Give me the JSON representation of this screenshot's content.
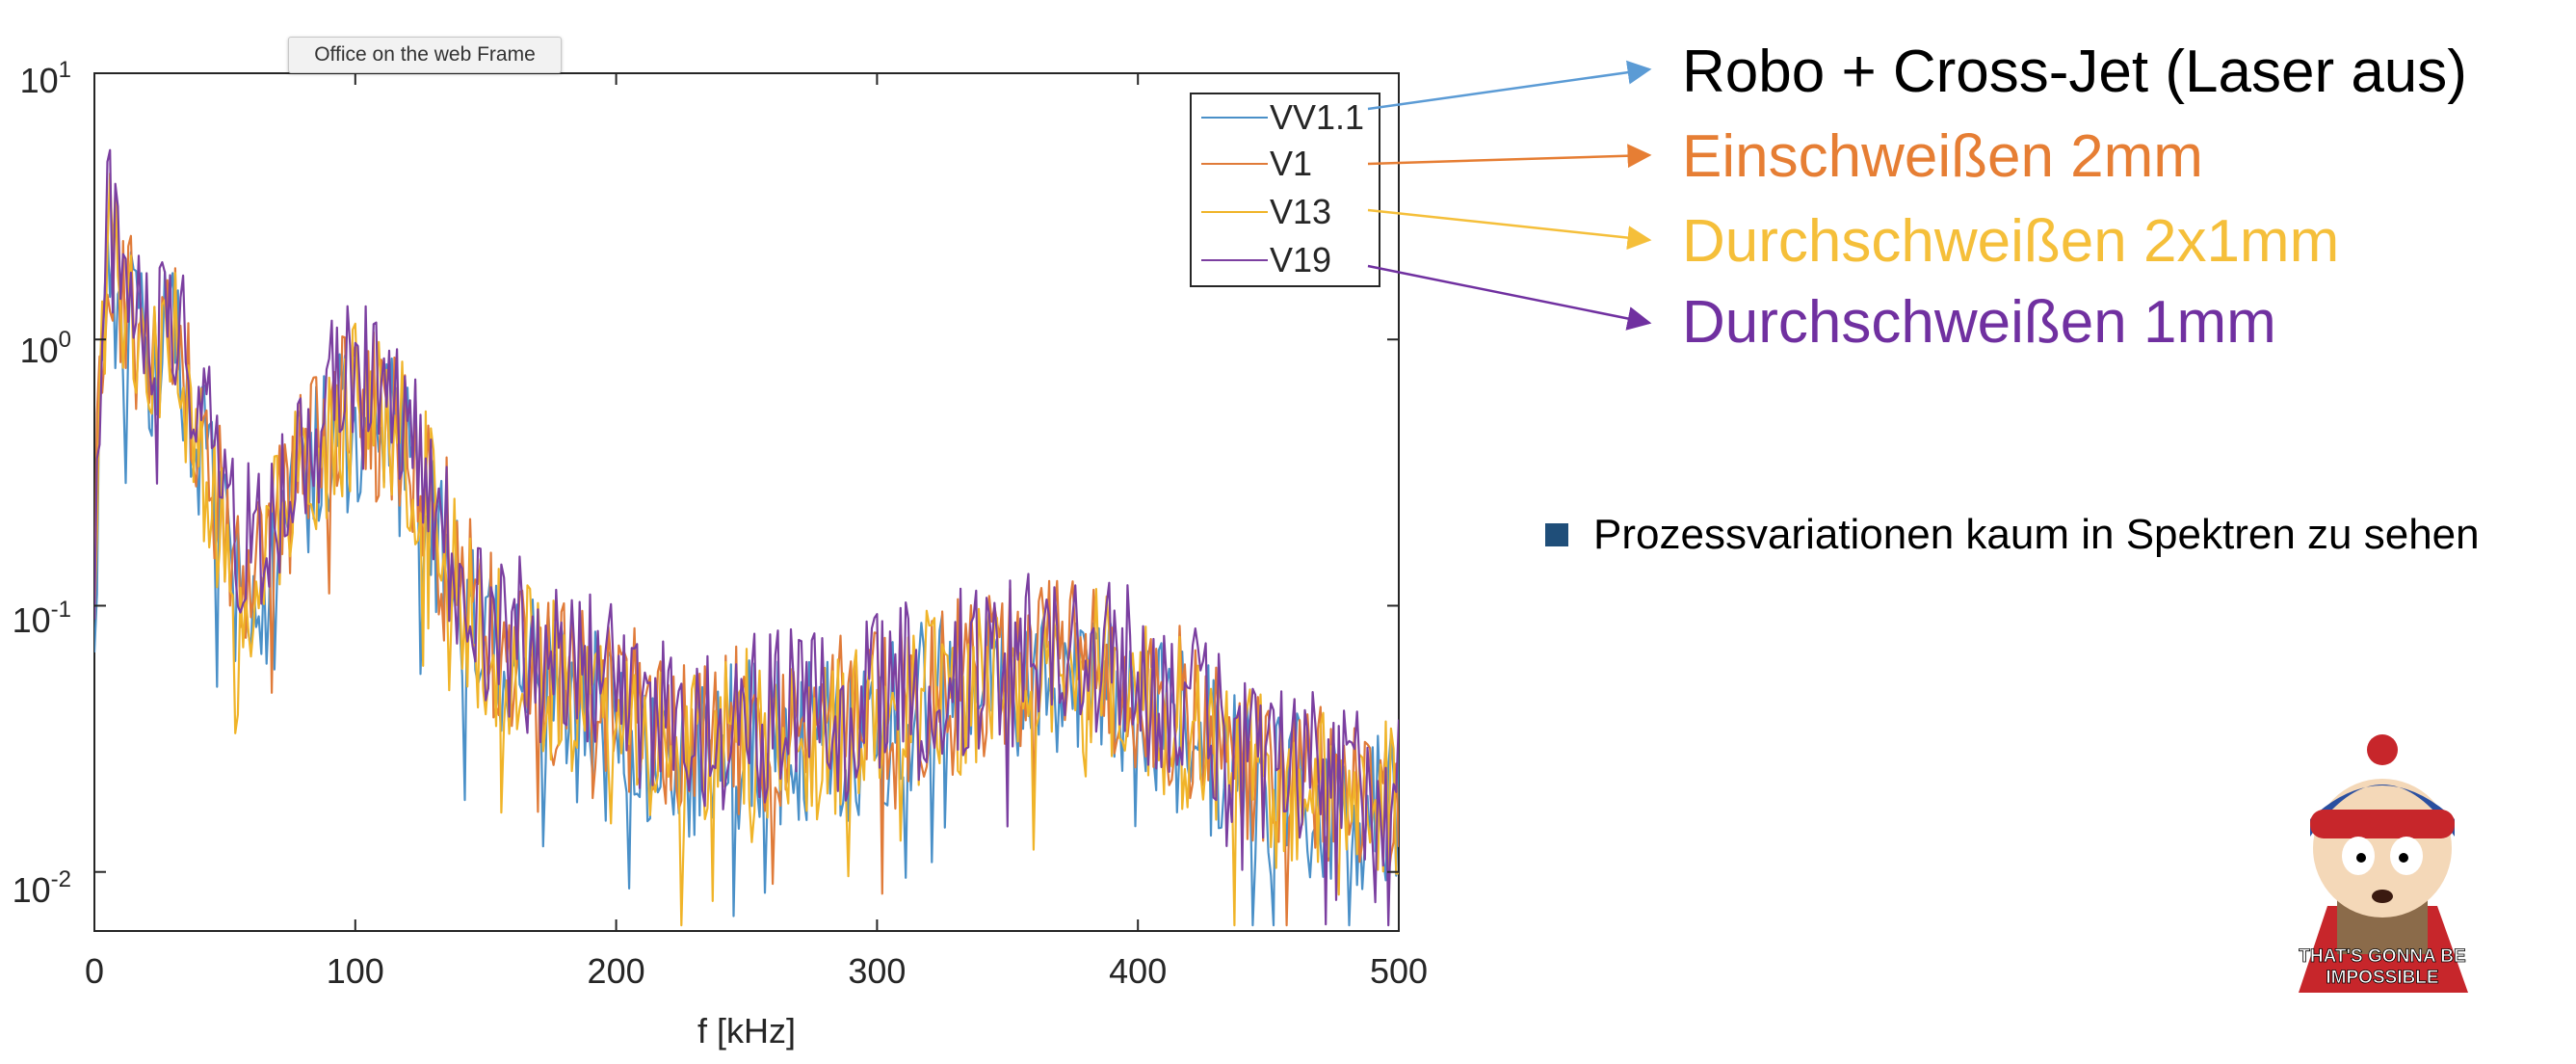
{
  "tooltip": "Office on the web Frame",
  "chart_data": {
    "type": "line",
    "xlabel": "f [kHz]",
    "ylabel": "",
    "title": "",
    "xlim": [
      0,
      500
    ],
    "ylim": [
      0.006,
      10
    ],
    "yscale": "log",
    "x_ticks": [
      "0",
      "100",
      "200",
      "300",
      "400",
      "500"
    ],
    "y_ticks": [
      {
        "base": "10",
        "exp": "1"
      },
      {
        "base": "10",
        "exp": "0"
      },
      {
        "base": "10",
        "exp": "-1"
      },
      {
        "base": "10",
        "exp": "-2"
      }
    ],
    "legend_position": "top-right",
    "series": [
      {
        "name": "VV1.1",
        "color": "#4a90c8",
        "x": [
          0,
          5,
          10,
          20,
          30,
          40,
          50,
          60,
          70,
          80,
          90,
          100,
          110,
          120,
          130,
          140,
          150,
          175,
          200,
          225,
          250,
          275,
          300,
          325,
          350,
          375,
          400,
          425,
          450,
          475,
          500
        ],
        "y": [
          0.12,
          2.5,
          1.2,
          0.8,
          0.9,
          0.4,
          0.15,
          0.1,
          0.15,
          0.3,
          0.4,
          0.5,
          0.45,
          0.35,
          0.2,
          0.1,
          0.07,
          0.05,
          0.04,
          0.025,
          0.03,
          0.03,
          0.035,
          0.045,
          0.05,
          0.06,
          0.045,
          0.03,
          0.02,
          0.018,
          0.018
        ]
      },
      {
        "name": "V1",
        "color": "#e07b39",
        "x": [
          0,
          5,
          10,
          20,
          30,
          40,
          50,
          60,
          70,
          80,
          90,
          100,
          110,
          120,
          130,
          140,
          150,
          175,
          200,
          225,
          250,
          275,
          300,
          325,
          350,
          375,
          400,
          425,
          450,
          475,
          500
        ],
        "y": [
          0.15,
          3.0,
          1.4,
          1.0,
          1.0,
          0.5,
          0.2,
          0.15,
          0.2,
          0.35,
          0.5,
          0.6,
          0.5,
          0.4,
          0.25,
          0.12,
          0.08,
          0.055,
          0.045,
          0.03,
          0.035,
          0.035,
          0.04,
          0.05,
          0.055,
          0.065,
          0.05,
          0.035,
          0.022,
          0.02,
          0.02
        ]
      },
      {
        "name": "V13",
        "color": "#f0b429",
        "x": [
          0,
          5,
          10,
          20,
          30,
          40,
          50,
          60,
          70,
          80,
          90,
          100,
          110,
          120,
          130,
          140,
          150,
          175,
          200,
          225,
          250,
          275,
          300,
          325,
          350,
          375,
          400,
          425,
          450,
          475,
          500
        ],
        "y": [
          0.14,
          2.8,
          1.3,
          1.1,
          1.0,
          0.45,
          0.18,
          0.13,
          0.18,
          0.32,
          0.45,
          0.55,
          0.5,
          0.38,
          0.22,
          0.11,
          0.075,
          0.05,
          0.042,
          0.028,
          0.033,
          0.032,
          0.038,
          0.048,
          0.055,
          0.062,
          0.048,
          0.032,
          0.021,
          0.019,
          0.02
        ]
      },
      {
        "name": "V19",
        "color": "#7b3fa0",
        "x": [
          0,
          5,
          10,
          20,
          30,
          40,
          50,
          60,
          70,
          80,
          90,
          100,
          110,
          120,
          130,
          140,
          150,
          175,
          200,
          225,
          250,
          275,
          300,
          325,
          350,
          375,
          400,
          425,
          450,
          475,
          500
        ],
        "y": [
          0.13,
          3.2,
          1.5,
          1.2,
          1.1,
          0.55,
          0.22,
          0.18,
          0.22,
          0.4,
          0.6,
          0.7,
          0.55,
          0.45,
          0.28,
          0.13,
          0.09,
          0.06,
          0.05,
          0.032,
          0.04,
          0.04,
          0.045,
          0.055,
          0.06,
          0.07,
          0.055,
          0.038,
          0.024,
          0.022,
          0.022
        ]
      }
    ]
  },
  "annotations": [
    {
      "text": "Robo + Cross-Jet (Laser aus)",
      "color": "#000000"
    },
    {
      "text": "Einschweißen 2mm",
      "color": "#e67e34"
    },
    {
      "text": "Durchschweißen 2x1mm",
      "color": "#f5bf3a"
    },
    {
      "text": "Durchschweißen 1mm",
      "color": "#7030a0"
    }
  ],
  "arrow_colors": [
    "#5b9bd5",
    "#e67e34",
    "#f5bf3a",
    "#7030a0"
  ],
  "bullet": {
    "text": "Prozessvariationen kaum in Spektren zu sehen",
    "color": "#1f4e79"
  },
  "meme": {
    "caption_line1": "THAT'S GONNA BE",
    "caption_line2": "IMPOSSIBLE"
  }
}
